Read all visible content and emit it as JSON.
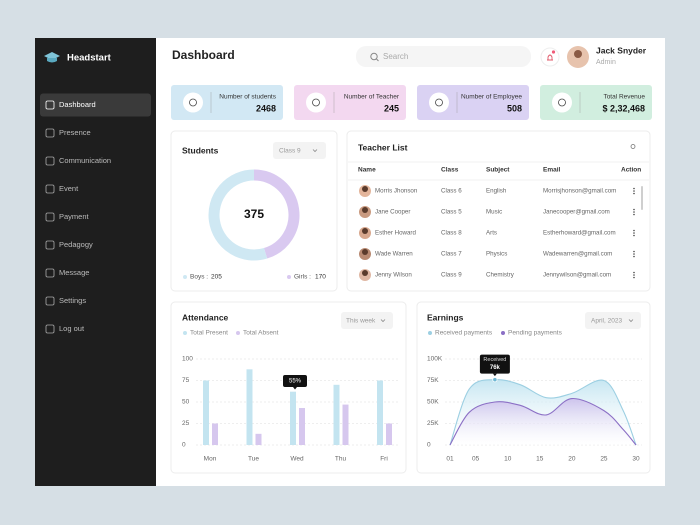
{
  "sidebar": {
    "brand": "Headstart",
    "menu": [
      "Dashboard",
      "Presence",
      "Communication",
      "Event",
      "Payment",
      "Pedagogy",
      "Message",
      "Settings",
      "Log out"
    ],
    "active": 0
  },
  "header": {
    "title": "Dashboard",
    "search_placeholder": "Search",
    "user": {
      "name": "Jack Snyder",
      "role": "Admin"
    }
  },
  "stats": [
    {
      "label": "Number of students",
      "value": "2468",
      "color": "#d2e8f4"
    },
    {
      "label": "Number of Teacher",
      "value": "245",
      "color": "#f3d8f0"
    },
    {
      "label": "Number of Employee",
      "value": "508",
      "color": "#dad2f3"
    },
    {
      "label": "Total Revenue",
      "value": "$ 2,32,468",
      "color": "#d1eedf"
    }
  ],
  "students": {
    "title": "Students",
    "filter": "Class 9",
    "chart": {
      "type": "donut",
      "total": 375,
      "series": [
        {
          "label": "Boys :",
          "value": 205,
          "color": "#cfe8f3"
        },
        {
          "label": "Girls :",
          "value": 170,
          "color": "#d9c9f0"
        }
      ]
    }
  },
  "teachers": {
    "title": "Teacher List",
    "columns": [
      "Name",
      "Class",
      "Subject",
      "Email",
      "Action"
    ],
    "rows": [
      [
        "Morris Jhonson",
        "Class 6",
        "English",
        "Morrisjhonson@gmail.com"
      ],
      [
        "Jane Cooper",
        "Class 5",
        "Music",
        "Janecooper@gmail.com"
      ],
      [
        "Esther Howard",
        "Class 8",
        "Arts",
        "Estherhoward@gmail.com"
      ],
      [
        "Wade Warren",
        "Class 7",
        "Physics",
        "Wadewarren@gmail.com"
      ],
      [
        "Jenny Wilson",
        "Class 9",
        "Chemistry",
        "Jennywilson@gmail.com"
      ]
    ]
  },
  "attendance": {
    "title": "Attendance",
    "filter": "This week",
    "chart": {
      "type": "bar",
      "categories": [
        "Mon",
        "Tue",
        "Wed",
        "Thu",
        "Fri"
      ],
      "series": [
        {
          "name": "Total Present",
          "color": "#c3e4f0",
          "values": [
            75,
            88,
            62,
            70,
            75
          ]
        },
        {
          "name": "Total Absent",
          "color": "#d6c7ee",
          "values": [
            25,
            13,
            43,
            47,
            25
          ]
        }
      ],
      "ylim": [
        0,
        100
      ],
      "yticks": [
        0,
        25,
        50,
        75,
        100
      ],
      "grid": true,
      "annotation": "55%"
    }
  },
  "earnings": {
    "title": "Earnings",
    "filter": "April, 2023",
    "chart": {
      "type": "area",
      "x": [
        1,
        4,
        8,
        12,
        16,
        20,
        25,
        28,
        30
      ],
      "series": [
        {
          "name": "Received payments",
          "color": "#9ccfe2",
          "values": [
            0,
            65000,
            76000,
            70000,
            55000,
            60000,
            75000,
            40000,
            0
          ]
        },
        {
          "name": "Pending payments",
          "color": "#8b6fc5",
          "values": [
            0,
            38000,
            50000,
            46000,
            35000,
            54000,
            40000,
            18000,
            0
          ]
        }
      ],
      "xlim": [
        1,
        30
      ],
      "xticks": [
        {
          "value": 1,
          "label": "01"
        },
        {
          "value": 5,
          "label": "05"
        },
        10,
        15,
        20,
        25,
        30
      ],
      "ylim": [
        0,
        100000
      ],
      "yticks": [
        0,
        {
          "value": 25000,
          "label": "25K"
        },
        {
          "value": 50000,
          "label": "50K"
        },
        {
          "value": 75000,
          "label": "75K"
        },
        {
          "value": 100000,
          "label": "100K"
        }
      ],
      "grid": true,
      "annotation": {
        "title": "Received",
        "value": "76k"
      }
    }
  }
}
